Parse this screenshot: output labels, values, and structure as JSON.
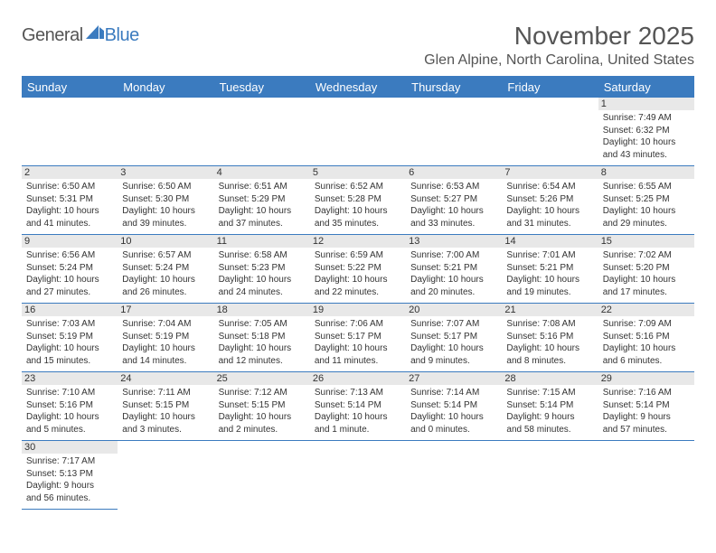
{
  "logo": {
    "part1": "General",
    "part2": "Blue"
  },
  "title": "November 2025",
  "location": "Glen Alpine, North Carolina, United States",
  "colors": {
    "accent": "#3b7bbf",
    "daybg": "#e8e8e8",
    "text": "#333333",
    "title_text": "#555555"
  },
  "weekdays": [
    "Sunday",
    "Monday",
    "Tuesday",
    "Wednesday",
    "Thursday",
    "Friday",
    "Saturday"
  ],
  "grid": [
    [
      null,
      null,
      null,
      null,
      null,
      null,
      {
        "n": "1",
        "sr": "Sunrise: 7:49 AM",
        "ss": "Sunset: 6:32 PM",
        "d1": "Daylight: 10 hours",
        "d2": "and 43 minutes."
      }
    ],
    [
      {
        "n": "2",
        "sr": "Sunrise: 6:50 AM",
        "ss": "Sunset: 5:31 PM",
        "d1": "Daylight: 10 hours",
        "d2": "and 41 minutes."
      },
      {
        "n": "3",
        "sr": "Sunrise: 6:50 AM",
        "ss": "Sunset: 5:30 PM",
        "d1": "Daylight: 10 hours",
        "d2": "and 39 minutes."
      },
      {
        "n": "4",
        "sr": "Sunrise: 6:51 AM",
        "ss": "Sunset: 5:29 PM",
        "d1": "Daylight: 10 hours",
        "d2": "and 37 minutes."
      },
      {
        "n": "5",
        "sr": "Sunrise: 6:52 AM",
        "ss": "Sunset: 5:28 PM",
        "d1": "Daylight: 10 hours",
        "d2": "and 35 minutes."
      },
      {
        "n": "6",
        "sr": "Sunrise: 6:53 AM",
        "ss": "Sunset: 5:27 PM",
        "d1": "Daylight: 10 hours",
        "d2": "and 33 minutes."
      },
      {
        "n": "7",
        "sr": "Sunrise: 6:54 AM",
        "ss": "Sunset: 5:26 PM",
        "d1": "Daylight: 10 hours",
        "d2": "and 31 minutes."
      },
      {
        "n": "8",
        "sr": "Sunrise: 6:55 AM",
        "ss": "Sunset: 5:25 PM",
        "d1": "Daylight: 10 hours",
        "d2": "and 29 minutes."
      }
    ],
    [
      {
        "n": "9",
        "sr": "Sunrise: 6:56 AM",
        "ss": "Sunset: 5:24 PM",
        "d1": "Daylight: 10 hours",
        "d2": "and 27 minutes."
      },
      {
        "n": "10",
        "sr": "Sunrise: 6:57 AM",
        "ss": "Sunset: 5:24 PM",
        "d1": "Daylight: 10 hours",
        "d2": "and 26 minutes."
      },
      {
        "n": "11",
        "sr": "Sunrise: 6:58 AM",
        "ss": "Sunset: 5:23 PM",
        "d1": "Daylight: 10 hours",
        "d2": "and 24 minutes."
      },
      {
        "n": "12",
        "sr": "Sunrise: 6:59 AM",
        "ss": "Sunset: 5:22 PM",
        "d1": "Daylight: 10 hours",
        "d2": "and 22 minutes."
      },
      {
        "n": "13",
        "sr": "Sunrise: 7:00 AM",
        "ss": "Sunset: 5:21 PM",
        "d1": "Daylight: 10 hours",
        "d2": "and 20 minutes."
      },
      {
        "n": "14",
        "sr": "Sunrise: 7:01 AM",
        "ss": "Sunset: 5:21 PM",
        "d1": "Daylight: 10 hours",
        "d2": "and 19 minutes."
      },
      {
        "n": "15",
        "sr": "Sunrise: 7:02 AM",
        "ss": "Sunset: 5:20 PM",
        "d1": "Daylight: 10 hours",
        "d2": "and 17 minutes."
      }
    ],
    [
      {
        "n": "16",
        "sr": "Sunrise: 7:03 AM",
        "ss": "Sunset: 5:19 PM",
        "d1": "Daylight: 10 hours",
        "d2": "and 15 minutes."
      },
      {
        "n": "17",
        "sr": "Sunrise: 7:04 AM",
        "ss": "Sunset: 5:19 PM",
        "d1": "Daylight: 10 hours",
        "d2": "and 14 minutes."
      },
      {
        "n": "18",
        "sr": "Sunrise: 7:05 AM",
        "ss": "Sunset: 5:18 PM",
        "d1": "Daylight: 10 hours",
        "d2": "and 12 minutes."
      },
      {
        "n": "19",
        "sr": "Sunrise: 7:06 AM",
        "ss": "Sunset: 5:17 PM",
        "d1": "Daylight: 10 hours",
        "d2": "and 11 minutes."
      },
      {
        "n": "20",
        "sr": "Sunrise: 7:07 AM",
        "ss": "Sunset: 5:17 PM",
        "d1": "Daylight: 10 hours",
        "d2": "and 9 minutes."
      },
      {
        "n": "21",
        "sr": "Sunrise: 7:08 AM",
        "ss": "Sunset: 5:16 PM",
        "d1": "Daylight: 10 hours",
        "d2": "and 8 minutes."
      },
      {
        "n": "22",
        "sr": "Sunrise: 7:09 AM",
        "ss": "Sunset: 5:16 PM",
        "d1": "Daylight: 10 hours",
        "d2": "and 6 minutes."
      }
    ],
    [
      {
        "n": "23",
        "sr": "Sunrise: 7:10 AM",
        "ss": "Sunset: 5:16 PM",
        "d1": "Daylight: 10 hours",
        "d2": "and 5 minutes."
      },
      {
        "n": "24",
        "sr": "Sunrise: 7:11 AM",
        "ss": "Sunset: 5:15 PM",
        "d1": "Daylight: 10 hours",
        "d2": "and 3 minutes."
      },
      {
        "n": "25",
        "sr": "Sunrise: 7:12 AM",
        "ss": "Sunset: 5:15 PM",
        "d1": "Daylight: 10 hours",
        "d2": "and 2 minutes."
      },
      {
        "n": "26",
        "sr": "Sunrise: 7:13 AM",
        "ss": "Sunset: 5:14 PM",
        "d1": "Daylight: 10 hours",
        "d2": "and 1 minute."
      },
      {
        "n": "27",
        "sr": "Sunrise: 7:14 AM",
        "ss": "Sunset: 5:14 PM",
        "d1": "Daylight: 10 hours",
        "d2": "and 0 minutes."
      },
      {
        "n": "28",
        "sr": "Sunrise: 7:15 AM",
        "ss": "Sunset: 5:14 PM",
        "d1": "Daylight: 9 hours",
        "d2": "and 58 minutes."
      },
      {
        "n": "29",
        "sr": "Sunrise: 7:16 AM",
        "ss": "Sunset: 5:14 PM",
        "d1": "Daylight: 9 hours",
        "d2": "and 57 minutes."
      }
    ],
    [
      {
        "n": "30",
        "sr": "Sunrise: 7:17 AM",
        "ss": "Sunset: 5:13 PM",
        "d1": "Daylight: 9 hours",
        "d2": "and 56 minutes."
      },
      null,
      null,
      null,
      null,
      null,
      null
    ]
  ]
}
